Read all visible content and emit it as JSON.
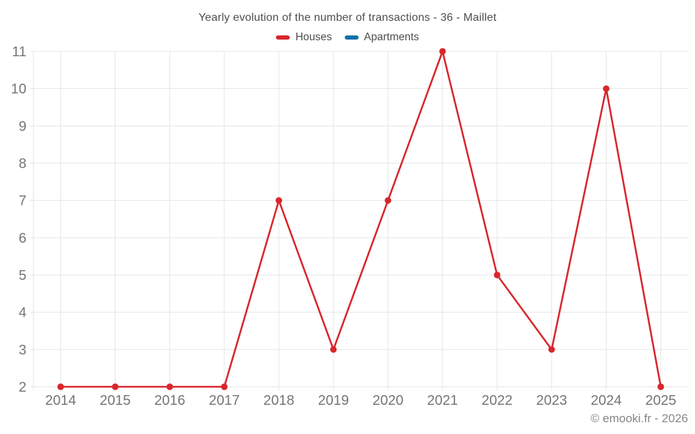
{
  "chart_data": {
    "type": "line",
    "title": "Yearly evolution of the number of transactions - 36 - Maillet",
    "categories": [
      "2014",
      "2015",
      "2016",
      "2017",
      "2018",
      "2019",
      "2020",
      "2021",
      "2022",
      "2023",
      "2024",
      "2025"
    ],
    "series": [
      {
        "name": "Houses",
        "color": "#d8262c",
        "values": [
          2,
          2,
          2,
          2,
          7,
          3,
          7,
          11,
          5,
          3,
          10,
          2
        ]
      },
      {
        "name": "Apartments",
        "color": "#1271a8",
        "values": []
      }
    ],
    "yticks": [
      2,
      3,
      4,
      5,
      6,
      7,
      8,
      9,
      10,
      11
    ],
    "ylim": [
      2,
      11
    ],
    "xlabel": "",
    "ylabel": "",
    "grid": true,
    "legend_position": "top"
  },
  "footer": {
    "credit": "© emooki.fr - 2026"
  },
  "colors": {
    "houses": "#d8262c",
    "apartments": "#1271a8",
    "grid": "#e6e6e6",
    "axis_text": "#757575",
    "title_text": "#4d4d4d",
    "footer_text": "#868686",
    "background": "#ffffff"
  }
}
